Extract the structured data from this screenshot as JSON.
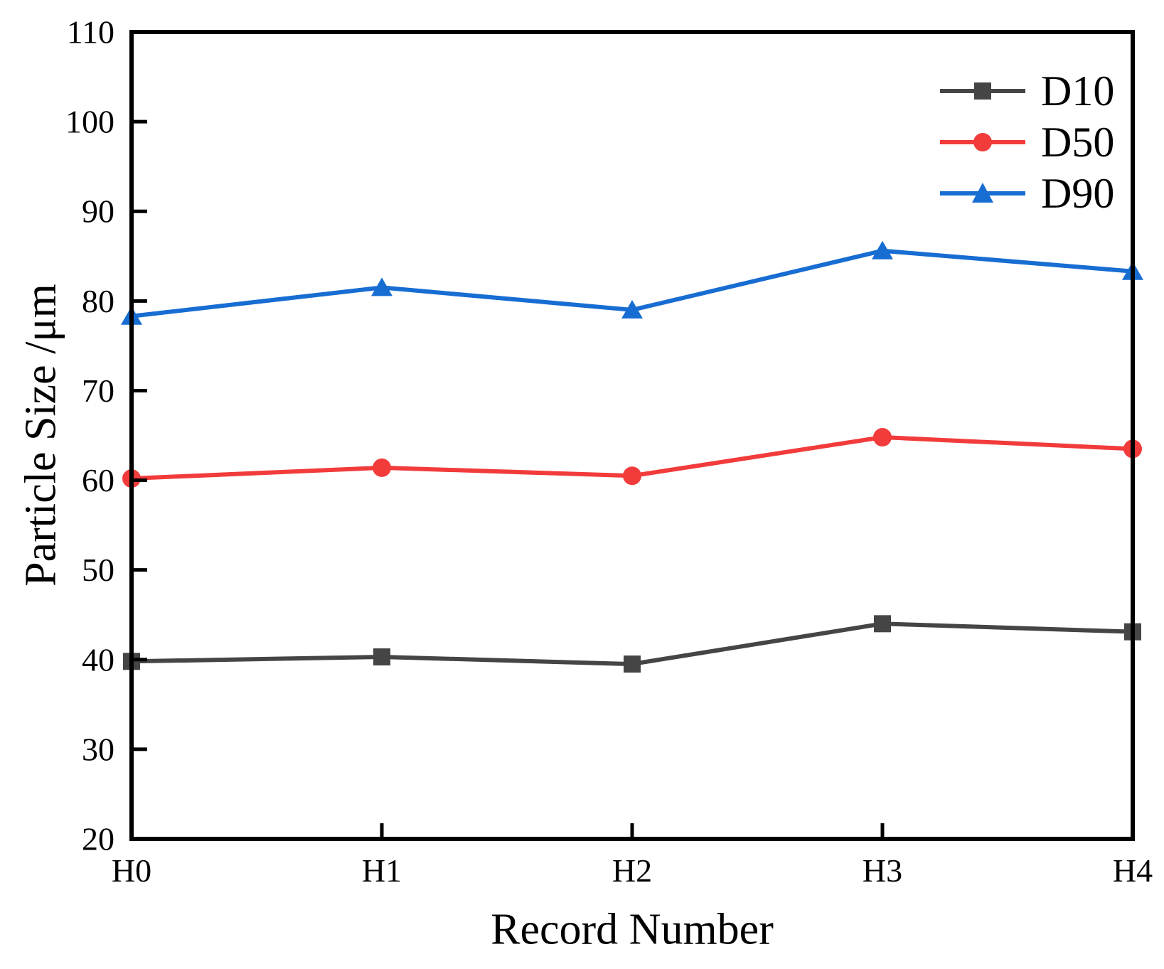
{
  "chart_data": {
    "type": "line",
    "title": "",
    "xlabel": "Record Number",
    "ylabel": "Particle Size /μm",
    "categories": [
      "H0",
      "H1",
      "H2",
      "H3",
      "H4"
    ],
    "series": [
      {
        "name": "D10",
        "marker": "square",
        "color": "#454545",
        "values": [
          39.8,
          40.3,
          39.5,
          44.0,
          43.1
        ]
      },
      {
        "name": "D50",
        "marker": "circle",
        "color": "#f23b3b",
        "values": [
          60.2,
          61.4,
          60.5,
          64.8,
          63.5
        ]
      },
      {
        "name": "D90",
        "marker": "triangle",
        "color": "#176dd2",
        "values": [
          78.3,
          81.5,
          79.0,
          85.6,
          83.3
        ]
      }
    ],
    "ylim": [
      20,
      110
    ],
    "yticks": [
      20,
      30,
      40,
      50,
      60,
      70,
      80,
      90,
      100,
      110
    ],
    "grid": false,
    "legend_position": "top-right",
    "axis_color": "#000000",
    "background_color": "#ffffff"
  }
}
